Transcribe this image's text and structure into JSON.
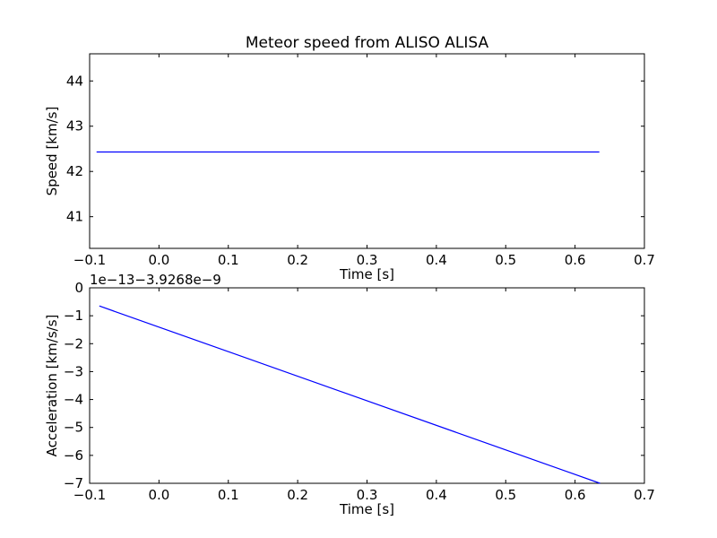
{
  "chart_data": [
    {
      "type": "line",
      "title": "Meteor speed from  ALISO ALISA",
      "xlabel": "Time [s]",
      "ylabel": "Speed [km/s]",
      "xlim": [
        -0.1,
        0.7
      ],
      "ylim": [
        40.3,
        44.6
      ],
      "xticks": [
        -0.1,
        0.0,
        0.1,
        0.2,
        0.3,
        0.4,
        0.5,
        0.6,
        0.7
      ],
      "xtick_labels": [
        "−0.1",
        "0.0",
        "0.1",
        "0.2",
        "0.3",
        "0.4",
        "0.5",
        "0.6",
        "0.7"
      ],
      "yticks": [
        41,
        42,
        43,
        44
      ],
      "ytick_labels": [
        "41",
        "42",
        "43",
        "44"
      ],
      "offset_text": "",
      "grid": false,
      "line_color": "#0000ff",
      "series": [
        {
          "x": [
            -0.09,
            0.635
          ],
          "y": [
            42.43,
            42.43
          ]
        }
      ]
    },
    {
      "type": "line",
      "title": "",
      "xlabel": "Time [s]",
      "ylabel": "Acceleration [km/s/s]",
      "xlim": [
        -0.1,
        0.7
      ],
      "ylim": [
        -7,
        0
      ],
      "xticks": [
        -0.1,
        0.0,
        0.1,
        0.2,
        0.3,
        0.4,
        0.5,
        0.6,
        0.7
      ],
      "xtick_labels": [
        "−0.1",
        "0.0",
        "0.1",
        "0.2",
        "0.3",
        "0.4",
        "0.5",
        "0.6",
        "0.7"
      ],
      "yticks": [
        0,
        -1,
        -2,
        -3,
        -4,
        -5,
        -6,
        -7
      ],
      "ytick_labels": [
        "0",
        "−1",
        "−2",
        "−3",
        "−4",
        "−5",
        "−6",
        "−7"
      ],
      "offset_text": "1e−13−3.9268e−9",
      "grid": false,
      "line_color": "#0000ff",
      "series": [
        {
          "x": [
            -0.086,
            0.636
          ],
          "y": [
            -0.65,
            -7.0
          ]
        }
      ]
    }
  ]
}
